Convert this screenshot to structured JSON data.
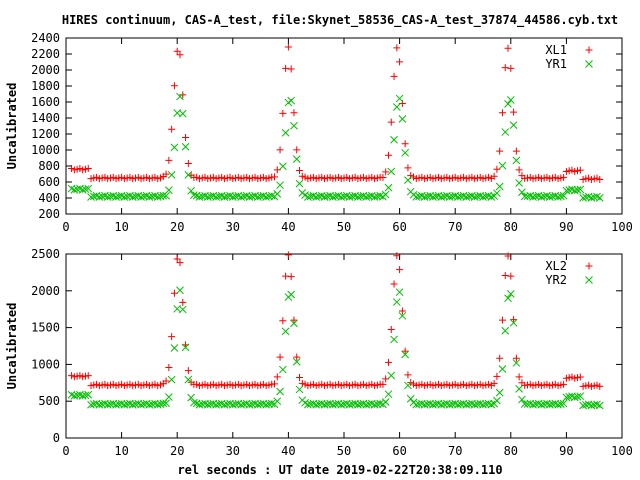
{
  "title": "HIRES continuum, CAS-A_test, file:Skynet_58536_CAS-A_test_37874_44586.cyb.txt",
  "xlabel": "rel seconds : UT date 2019-02-22T20:38:09.110",
  "colors": {
    "red": "#ff0000",
    "green": "#00c000"
  },
  "chart_data": [
    {
      "type": "scatter",
      "ylabel": "Uncalibrated",
      "xlim": [
        0,
        100
      ],
      "ylim": [
        200,
        2400
      ],
      "xticks": [
        0,
        10,
        20,
        30,
        40,
        50,
        60,
        70,
        80,
        90,
        100
      ],
      "yticks": [
        200,
        400,
        600,
        800,
        1000,
        1200,
        1400,
        1600,
        1800,
        2000,
        2200,
        2400
      ],
      "legend_position": "top-right",
      "series": [
        {
          "name": "XL1",
          "color": "#ff0000",
          "marker": "plus",
          "params": {
            "base_low": 760,
            "base_mid": 650,
            "base_end": 740,
            "peaks": [
              20.2,
              40.0,
              59.6,
              79.5
            ],
            "peak_height": 2280
          }
        },
        {
          "name": "YR1",
          "color": "#00c000",
          "marker": "cross",
          "params": {
            "base_low": 510,
            "base_mid": 420,
            "base_end": 500,
            "peaks": [
              20.5,
              40.3,
              59.9,
              79.8
            ],
            "peak_height": 1660
          }
        }
      ]
    },
    {
      "type": "scatter",
      "ylabel": "Uncalibrated",
      "xlim": [
        0,
        100
      ],
      "ylim": [
        0,
        2500
      ],
      "xticks": [
        0,
        10,
        20,
        30,
        40,
        50,
        60,
        70,
        80,
        90,
        100
      ],
      "yticks": [
        0,
        500,
        1000,
        1500,
        2000,
        2500
      ],
      "legend_position": "top-right",
      "series": [
        {
          "name": "XL2",
          "color": "#ff0000",
          "marker": "plus",
          "params": {
            "base_low": 840,
            "base_mid": 720,
            "base_end": 820,
            "peaks": [
              20.2,
              40.0,
              59.6,
              79.5
            ],
            "peak_height": 2480
          }
        },
        {
          "name": "YR2",
          "color": "#00c000",
          "marker": "cross",
          "params": {
            "base_low": 580,
            "base_mid": 460,
            "base_end": 560,
            "peaks": [
              20.5,
              40.3,
              59.9,
              79.8
            ],
            "peak_height": 2000
          }
        }
      ]
    }
  ]
}
